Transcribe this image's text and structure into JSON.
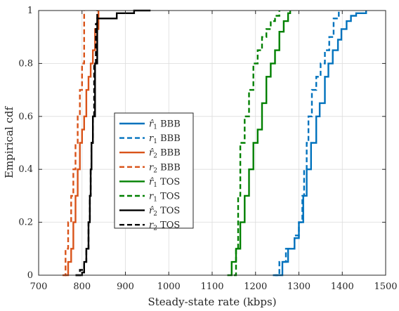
{
  "chart_data": {
    "type": "line",
    "title": "",
    "xlabel": "Steady-state rate (kbps)",
    "ylabel": "Empirical cdf",
    "xlim": [
      700,
      1500
    ],
    "ylim": [
      0,
      1
    ],
    "xticks": [
      700,
      800,
      900,
      1000,
      1100,
      1200,
      1300,
      1400,
      1500
    ],
    "yticks": [
      0,
      0.2,
      0.4,
      0.6,
      0.8,
      1
    ],
    "ytick_labels": [
      "0",
      "0.2",
      "0.4",
      "0.6",
      "0.8",
      "1"
    ],
    "grid": true,
    "legend_position": "center-left",
    "series": [
      {
        "name_sym": "r̂",
        "name_sub": "1",
        "name_proto": "BBB",
        "color": "#0072BD",
        "dash": false,
        "x": [
          1245,
          1262,
          1275,
          1290,
          1300,
          1310,
          1318,
          1328,
          1340,
          1348,
          1360,
          1368,
          1378,
          1390,
          1398,
          1410,
          1420,
          1432,
          1455
        ],
        "y": [
          0,
          0.05,
          0.1,
          0.14,
          0.2,
          0.3,
          0.4,
          0.5,
          0.6,
          0.65,
          0.75,
          0.8,
          0.85,
          0.89,
          0.93,
          0.96,
          0.98,
          0.99,
          1
        ]
      },
      {
        "name_sym": "r",
        "name_sub": "1",
        "name_proto": "BBB",
        "color": "#0072BD",
        "dash": true,
        "x": [
          1240,
          1255,
          1270,
          1290,
          1300,
          1308,
          1312,
          1318,
          1322,
          1330,
          1340,
          1350,
          1360,
          1370,
          1380,
          1392
        ],
        "y": [
          0,
          0.05,
          0.1,
          0.15,
          0.2,
          0.3,
          0.4,
          0.5,
          0.6,
          0.7,
          0.75,
          0.8,
          0.85,
          0.9,
          0.97,
          1
        ]
      },
      {
        "name_sym": "r̂",
        "name_sub": "2",
        "name_proto": "BBB",
        "color": "#D95319",
        "dash": false,
        "x": [
          760,
          768,
          775,
          780,
          785,
          790,
          795,
          800,
          805,
          810,
          815,
          820,
          825,
          830,
          838
        ],
        "y": [
          0,
          0.05,
          0.1,
          0.2,
          0.3,
          0.4,
          0.5,
          0.55,
          0.6,
          0.7,
          0.75,
          0.8,
          0.85,
          0.93,
          1
        ]
      },
      {
        "name_sym": "r",
        "name_sub": "2",
        "name_proto": "BBB",
        "color": "#D95319",
        "dash": true,
        "x": [
          755,
          762,
          768,
          775,
          780,
          785,
          790,
          795,
          800,
          805
        ],
        "y": [
          0,
          0.1,
          0.2,
          0.3,
          0.4,
          0.5,
          0.6,
          0.7,
          0.8,
          1
        ]
      },
      {
        "name_sym": "r̂",
        "name_sub": "1",
        "name_proto": "TOS",
        "color": "#008000",
        "dash": false,
        "x": [
          1135,
          1145,
          1155,
          1165,
          1175,
          1185,
          1195,
          1205,
          1215,
          1225,
          1235,
          1245,
          1255,
          1265,
          1275,
          1280
        ],
        "y": [
          0,
          0.05,
          0.1,
          0.2,
          0.3,
          0.4,
          0.5,
          0.55,
          0.65,
          0.75,
          0.8,
          0.85,
          0.92,
          0.96,
          0.99,
          1
        ]
      },
      {
        "name_sym": "r",
        "name_sub": "1",
        "name_proto": "TOS",
        "color": "#008000",
        "dash": true,
        "x": [
          1150,
          1155,
          1160,
          1165,
          1175,
          1185,
          1195,
          1205,
          1215,
          1225,
          1235,
          1245,
          1255
        ],
        "y": [
          0,
          0.1,
          0.3,
          0.5,
          0.6,
          0.7,
          0.8,
          0.85,
          0.9,
          0.93,
          0.96,
          0.98,
          1
        ]
      },
      {
        "name_sym": "r̂",
        "name_sub": "2",
        "name_proto": "TOS",
        "color": "#000000",
        "dash": false,
        "x": [
          785,
          800,
          805,
          810,
          815,
          818,
          820,
          822,
          825,
          830,
          835,
          860,
          880,
          900,
          920,
          958
        ],
        "y": [
          0,
          0.01,
          0.05,
          0.1,
          0.2,
          0.3,
          0.4,
          0.5,
          0.6,
          0.8,
          0.97,
          0.97,
          0.99,
          0.99,
          1,
          1
        ]
      },
      {
        "name_sym": "r",
        "name_sub": "2",
        "name_proto": "TOS",
        "color": "#000000",
        "dash": true,
        "x": [
          785,
          795,
          805,
          810,
          815,
          818,
          820,
          822,
          825,
          828,
          832,
          835
        ],
        "y": [
          0,
          0.02,
          0.05,
          0.1,
          0.2,
          0.3,
          0.4,
          0.5,
          0.6,
          0.8,
          0.95,
          1
        ]
      }
    ]
  }
}
